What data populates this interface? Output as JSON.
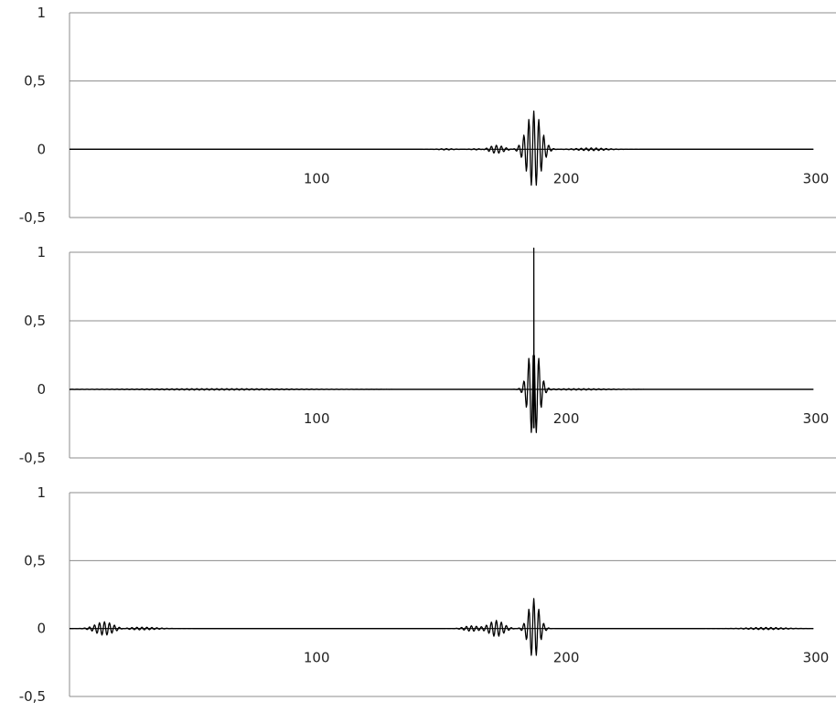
{
  "colors": {
    "signal": "#000000",
    "gridline": "#8c8c8c",
    "frame": "#8c8c8c",
    "zero_line": "#000000"
  },
  "chart_data": [
    {
      "type": "line",
      "xlim": [
        1,
        300
      ],
      "ylim": [
        -0.5,
        1
      ],
      "y_ticks": [
        "1",
        "0,5",
        "0",
        "-0,5"
      ],
      "x_tick_labels": [
        "100",
        "200",
        "300"
      ],
      "x_ticks_at": [
        100,
        200,
        300
      ],
      "grid": true,
      "series": [
        {
          "packets": [
            {
              "center": 152,
              "amp": 0.005,
              "freq": 0.5,
              "width": 4
            },
            {
              "center": 165,
              "amp": 0.005,
              "freq": 0.5,
              "width": 4
            },
            {
              "center": 172,
              "amp": 0.03,
              "freq": 0.5,
              "width": 4
            },
            {
              "center": 187,
              "amp": 0.28,
              "freq": 0.5,
              "width": 4
            },
            {
              "center": 210,
              "amp": 0.01,
              "freq": 0.5,
              "width": 8
            }
          ]
        }
      ]
    },
    {
      "type": "line",
      "xlim": [
        1,
        300
      ],
      "ylim": [
        -0.5,
        1
      ],
      "y_ticks": [
        "1",
        "0,5",
        "0",
        "-0,5"
      ],
      "x_tick_labels": [
        "100",
        "200",
        "300"
      ],
      "x_ticks_at": [
        100,
        200,
        300
      ],
      "grid": true,
      "series": [
        {
          "peak": {
            "x": 187,
            "y": 1.03
          },
          "min": -0.28,
          "packets": [
            {
              "center": 187,
              "amp": 0.35,
              "freq": 0.5,
              "width": 3
            },
            {
              "center": 60,
              "amp": 0.005,
              "freq": 0.5,
              "width": 40
            },
            {
              "center": 205,
              "amp": 0.005,
              "freq": 0.5,
              "width": 15
            }
          ]
        }
      ]
    },
    {
      "type": "line",
      "xlim": [
        1,
        300
      ],
      "ylim": [
        -0.5,
        1
      ],
      "y_ticks": [
        "1",
        "0,5",
        "0",
        "-0,5"
      ],
      "x_tick_labels": [
        "100",
        "200",
        "300"
      ],
      "x_ticks_at": [
        100,
        200,
        300
      ],
      "grid": true,
      "series": [
        {
          "packets": [
            {
              "center": 15,
              "amp": 0.05,
              "freq": 0.5,
              "width": 5
            },
            {
              "center": 30,
              "amp": 0.01,
              "freq": 0.5,
              "width": 8
            },
            {
              "center": 162,
              "amp": 0.02,
              "freq": 0.5,
              "width": 4
            },
            {
              "center": 172,
              "amp": 0.06,
              "freq": 0.5,
              "width": 4
            },
            {
              "center": 187,
              "amp": 0.22,
              "freq": 0.5,
              "width": 3
            },
            {
              "center": 280,
              "amp": 0.008,
              "freq": 0.5,
              "width": 10
            }
          ]
        }
      ]
    }
  ]
}
